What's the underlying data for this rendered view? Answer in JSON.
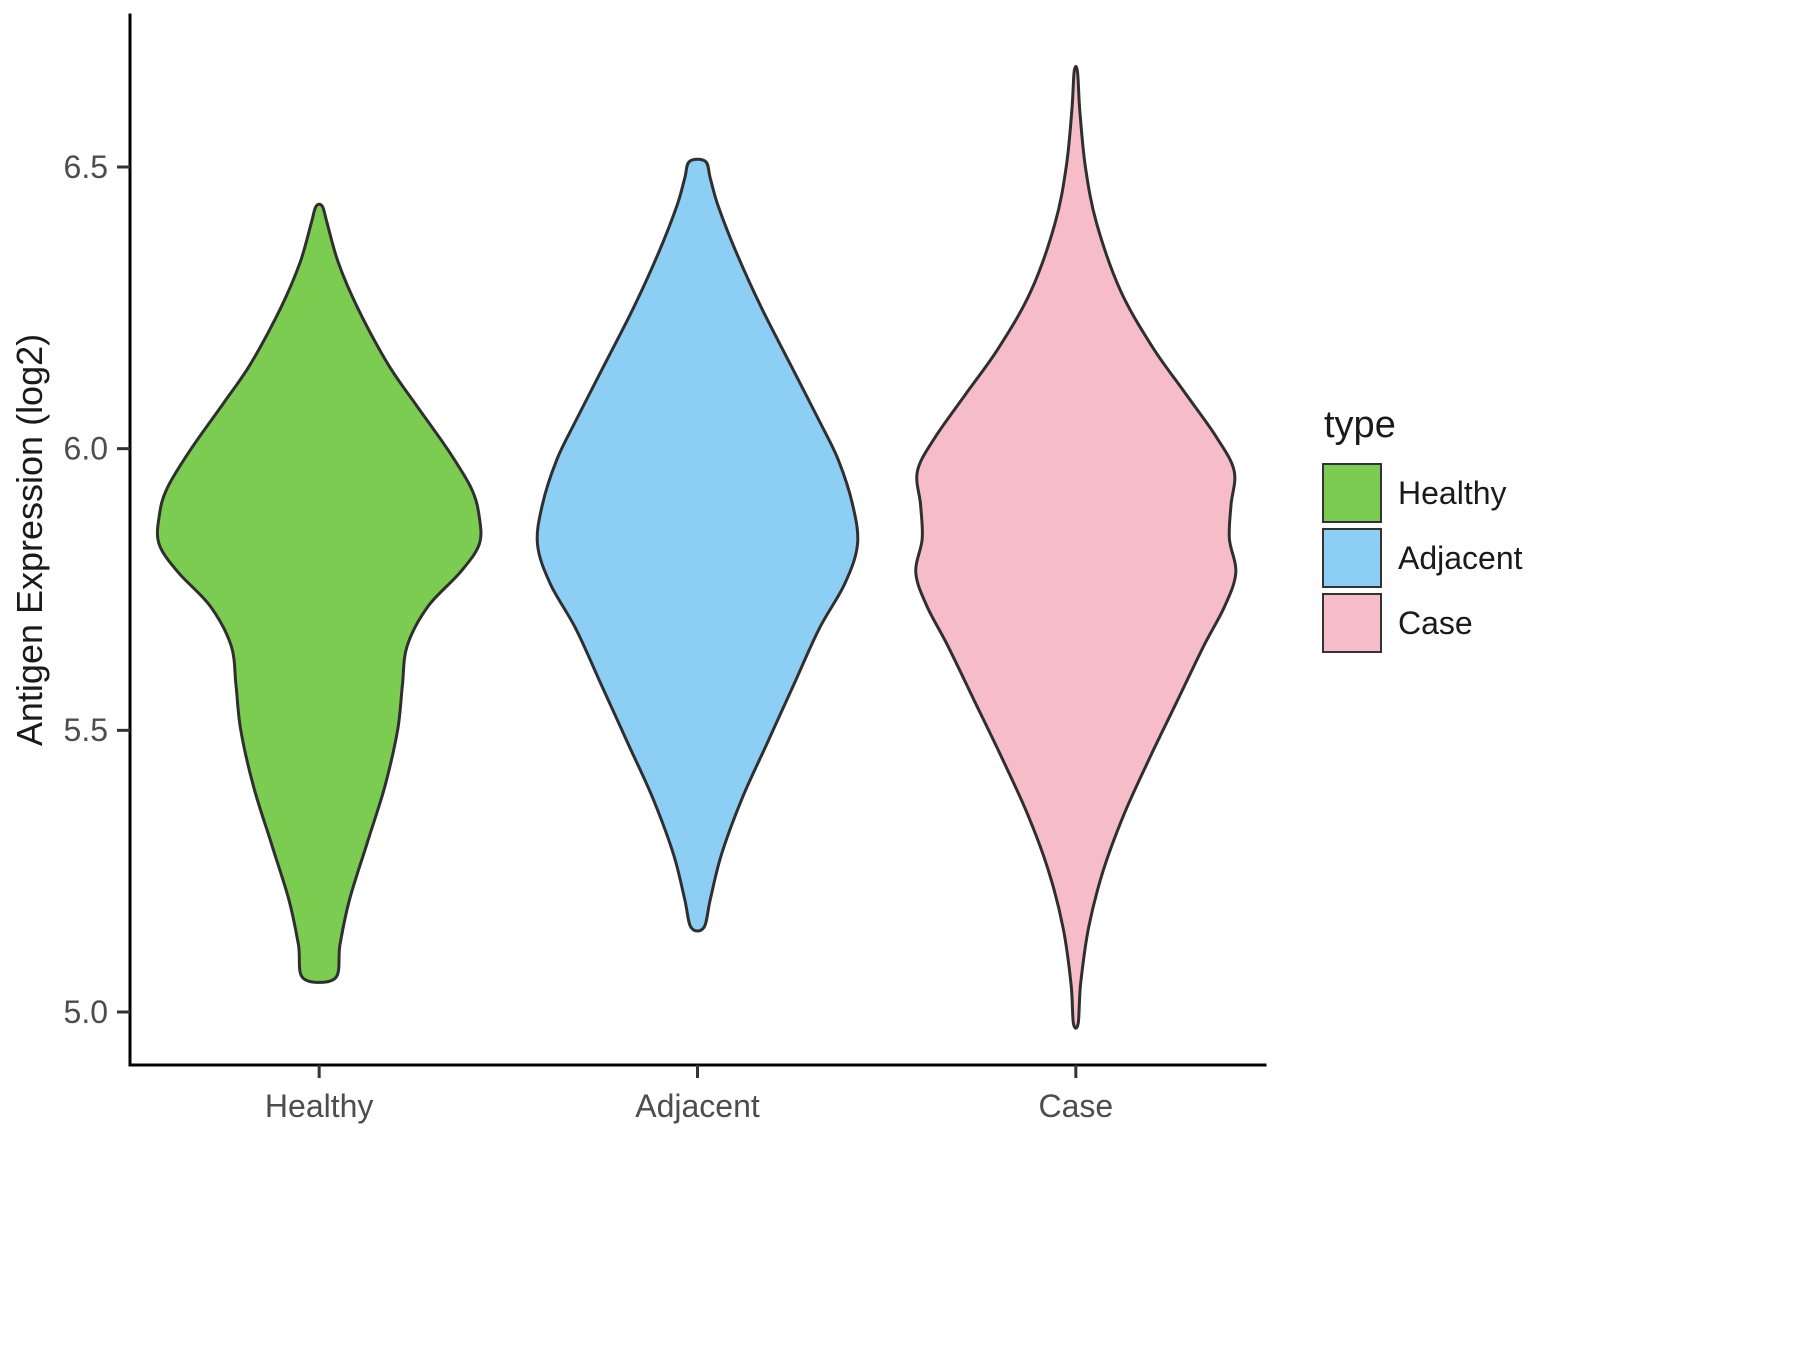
{
  "chart_data": {
    "type": "violin",
    "title": "",
    "xlabel": "",
    "ylabel": "Antigen Expression (log2)",
    "categories": [
      "Healthy",
      "Adjacent",
      "Case"
    ],
    "y_ticks": [
      5.0,
      5.5,
      6.0,
      6.5
    ],
    "y_tick_labels": [
      "5.0",
      "5.5",
      "6.0",
      "6.5"
    ],
    "ylim": [
      4.88,
      6.78
    ],
    "grid": "off",
    "legend": {
      "title": "type",
      "position": "right",
      "entries": [
        {
          "label": "Healthy",
          "color": "#7CCC52"
        },
        {
          "label": "Adjacent",
          "color": "#8CCEF4"
        },
        {
          "label": "Case",
          "color": "#F6BDC9"
        }
      ]
    },
    "outline_color": "#2f2f2f",
    "series": [
      {
        "name": "Healthy",
        "color": "#7CCC52",
        "range": [
          5.06,
          6.43
        ],
        "profile": [
          [
            5.06,
            0.1
          ],
          [
            5.12,
            0.13
          ],
          [
            5.2,
            0.19
          ],
          [
            5.3,
            0.3
          ],
          [
            5.4,
            0.41
          ],
          [
            5.5,
            0.49
          ],
          [
            5.58,
            0.52
          ],
          [
            5.65,
            0.55
          ],
          [
            5.72,
            0.68
          ],
          [
            5.78,
            0.88
          ],
          [
            5.83,
            1.0
          ],
          [
            5.88,
            1.0
          ],
          [
            5.93,
            0.95
          ],
          [
            6.0,
            0.8
          ],
          [
            6.08,
            0.6
          ],
          [
            6.15,
            0.43
          ],
          [
            6.25,
            0.24
          ],
          [
            6.33,
            0.12
          ],
          [
            6.4,
            0.05
          ],
          [
            6.43,
            0.02
          ]
        ]
      },
      {
        "name": "Adjacent",
        "color": "#8CCEF4",
        "range": [
          5.15,
          6.51
        ],
        "profile": [
          [
            5.15,
            0.04
          ],
          [
            5.2,
            0.08
          ],
          [
            5.28,
            0.15
          ],
          [
            5.38,
            0.28
          ],
          [
            5.48,
            0.44
          ],
          [
            5.58,
            0.6
          ],
          [
            5.68,
            0.76
          ],
          [
            5.76,
            0.92
          ],
          [
            5.83,
            1.0
          ],
          [
            5.9,
            0.97
          ],
          [
            5.98,
            0.88
          ],
          [
            6.05,
            0.76
          ],
          [
            6.15,
            0.58
          ],
          [
            6.25,
            0.4
          ],
          [
            6.35,
            0.24
          ],
          [
            6.43,
            0.13
          ],
          [
            6.48,
            0.08
          ],
          [
            6.51,
            0.05
          ]
        ]
      },
      {
        "name": "Case",
        "color": "#F6BDC9",
        "range": [
          4.98,
          6.67
        ],
        "profile": [
          [
            4.98,
            0.015
          ],
          [
            5.05,
            0.03
          ],
          [
            5.15,
            0.08
          ],
          [
            5.25,
            0.17
          ],
          [
            5.35,
            0.3
          ],
          [
            5.45,
            0.46
          ],
          [
            5.55,
            0.63
          ],
          [
            5.65,
            0.8
          ],
          [
            5.72,
            0.93
          ],
          [
            5.78,
            1.0
          ],
          [
            5.84,
            0.96
          ],
          [
            5.9,
            0.97
          ],
          [
            5.96,
            0.99
          ],
          [
            6.02,
            0.88
          ],
          [
            6.1,
            0.68
          ],
          [
            6.18,
            0.48
          ],
          [
            6.28,
            0.28
          ],
          [
            6.4,
            0.13
          ],
          [
            6.5,
            0.06
          ],
          [
            6.6,
            0.025
          ],
          [
            6.67,
            0.01
          ]
        ]
      }
    ]
  }
}
